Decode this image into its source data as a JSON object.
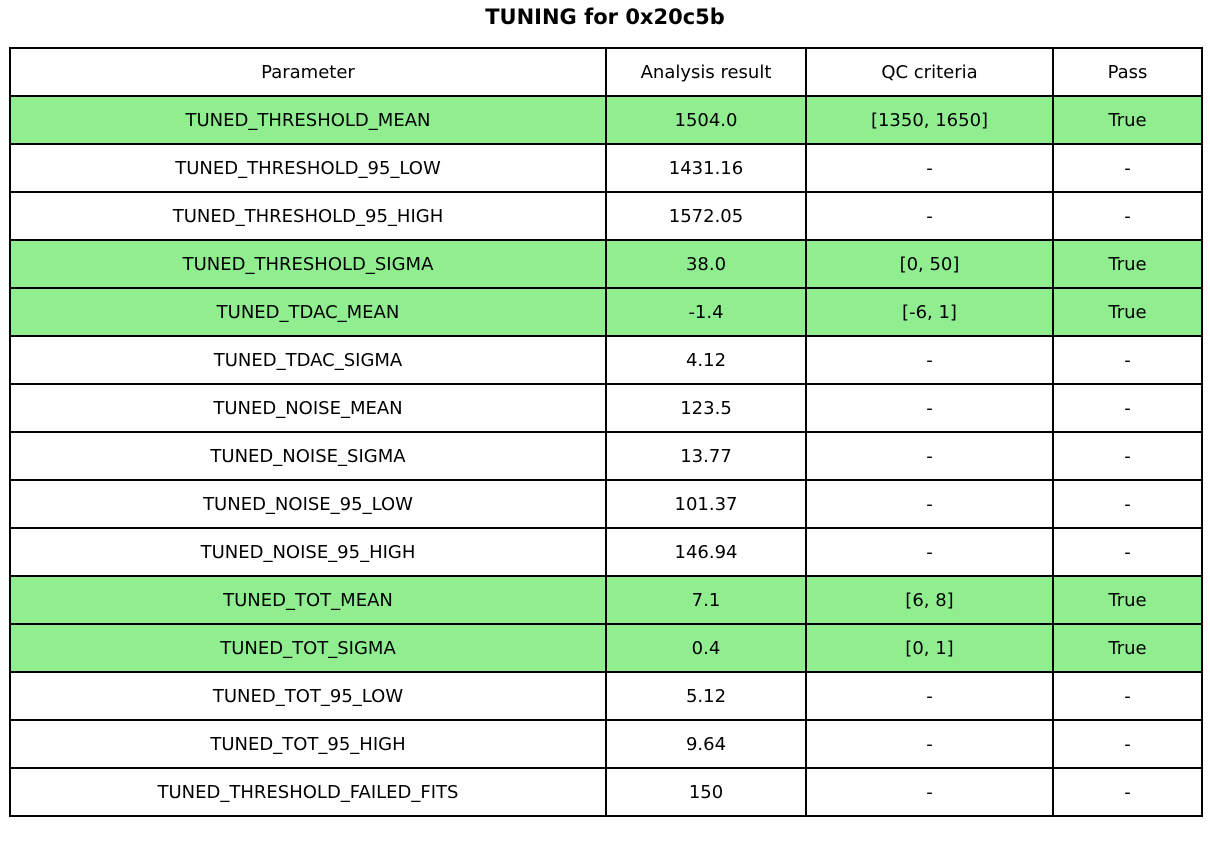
{
  "title": "TUNING for 0x20c5b",
  "colors": {
    "pass_green": "#90EE90",
    "border": "#000000",
    "background": "#ffffff",
    "text": "#000000"
  },
  "table": {
    "headers": [
      "Parameter",
      "Analysis result",
      "QC criteria",
      "Pass"
    ],
    "rows": [
      {
        "parameter": "TUNED_THRESHOLD_MEAN",
        "analysis_result": "1504.0",
        "qc_criteria": "[1350, 1650]",
        "pass": "True",
        "highlight": true
      },
      {
        "parameter": "TUNED_THRESHOLD_95_LOW",
        "analysis_result": "1431.16",
        "qc_criteria": "-",
        "pass": "-",
        "highlight": false
      },
      {
        "parameter": "TUNED_THRESHOLD_95_HIGH",
        "analysis_result": "1572.05",
        "qc_criteria": "-",
        "pass": "-",
        "highlight": false
      },
      {
        "parameter": "TUNED_THRESHOLD_SIGMA",
        "analysis_result": "38.0",
        "qc_criteria": "[0, 50]",
        "pass": "True",
        "highlight": true
      },
      {
        "parameter": "TUNED_TDAC_MEAN",
        "analysis_result": "-1.4",
        "qc_criteria": "[-6, 1]",
        "pass": "True",
        "highlight": true
      },
      {
        "parameter": "TUNED_TDAC_SIGMA",
        "analysis_result": "4.12",
        "qc_criteria": "-",
        "pass": "-",
        "highlight": false
      },
      {
        "parameter": "TUNED_NOISE_MEAN",
        "analysis_result": "123.5",
        "qc_criteria": "-",
        "pass": "-",
        "highlight": false
      },
      {
        "parameter": "TUNED_NOISE_SIGMA",
        "analysis_result": "13.77",
        "qc_criteria": "-",
        "pass": "-",
        "highlight": false
      },
      {
        "parameter": "TUNED_NOISE_95_LOW",
        "analysis_result": "101.37",
        "qc_criteria": "-",
        "pass": "-",
        "highlight": false
      },
      {
        "parameter": "TUNED_NOISE_95_HIGH",
        "analysis_result": "146.94",
        "qc_criteria": "-",
        "pass": "-",
        "highlight": false
      },
      {
        "parameter": "TUNED_TOT_MEAN",
        "analysis_result": "7.1",
        "qc_criteria": "[6, 8]",
        "pass": "True",
        "highlight": true
      },
      {
        "parameter": "TUNED_TOT_SIGMA",
        "analysis_result": "0.4",
        "qc_criteria": "[0, 1]",
        "pass": "True",
        "highlight": true
      },
      {
        "parameter": "TUNED_TOT_95_LOW",
        "analysis_result": "5.12",
        "qc_criteria": "-",
        "pass": "-",
        "highlight": false
      },
      {
        "parameter": "TUNED_TOT_95_HIGH",
        "analysis_result": "9.64",
        "qc_criteria": "-",
        "pass": "-",
        "highlight": false
      },
      {
        "parameter": "TUNED_THRESHOLD_FAILED_FITS",
        "analysis_result": "150",
        "qc_criteria": "-",
        "pass": "-",
        "highlight": false
      }
    ]
  },
  "chart_data": {
    "type": "table",
    "title": "TUNING for 0x20c5b",
    "columns": [
      "Parameter",
      "Analysis result",
      "QC criteria",
      "Pass"
    ],
    "rows": [
      [
        "TUNED_THRESHOLD_MEAN",
        "1504.0",
        "[1350, 1650]",
        "True"
      ],
      [
        "TUNED_THRESHOLD_95_LOW",
        "1431.16",
        "-",
        "-"
      ],
      [
        "TUNED_THRESHOLD_95_HIGH",
        "1572.05",
        "-",
        "-"
      ],
      [
        "TUNED_THRESHOLD_SIGMA",
        "38.0",
        "[0, 50]",
        "True"
      ],
      [
        "TUNED_TDAC_MEAN",
        "-1.4",
        "[-6, 1]",
        "True"
      ],
      [
        "TUNED_TDAC_SIGMA",
        "4.12",
        "-",
        "-"
      ],
      [
        "TUNED_NOISE_MEAN",
        "123.5",
        "-",
        "-"
      ],
      [
        "TUNED_NOISE_SIGMA",
        "13.77",
        "-",
        "-"
      ],
      [
        "TUNED_NOISE_95_LOW",
        "101.37",
        "-",
        "-"
      ],
      [
        "TUNED_NOISE_95_HIGH",
        "146.94",
        "-",
        "-"
      ],
      [
        "TUNED_TOT_MEAN",
        "7.1",
        "[6, 8]",
        "True"
      ],
      [
        "TUNED_TOT_SIGMA",
        "0.4",
        "[0, 1]",
        "True"
      ],
      [
        "TUNED_TOT_95_LOW",
        "5.12",
        "-",
        "-"
      ],
      [
        "TUNED_TOT_95_HIGH",
        "9.64",
        "-",
        "-"
      ],
      [
        "TUNED_THRESHOLD_FAILED_FITS",
        "150",
        "-",
        "-"
      ]
    ],
    "highlighted_row_indices": [
      0,
      3,
      4,
      10,
      11
    ],
    "highlight_color": "#90EE90",
    "layout": "title centered above table; all cells center-aligned; black gridlines"
  }
}
